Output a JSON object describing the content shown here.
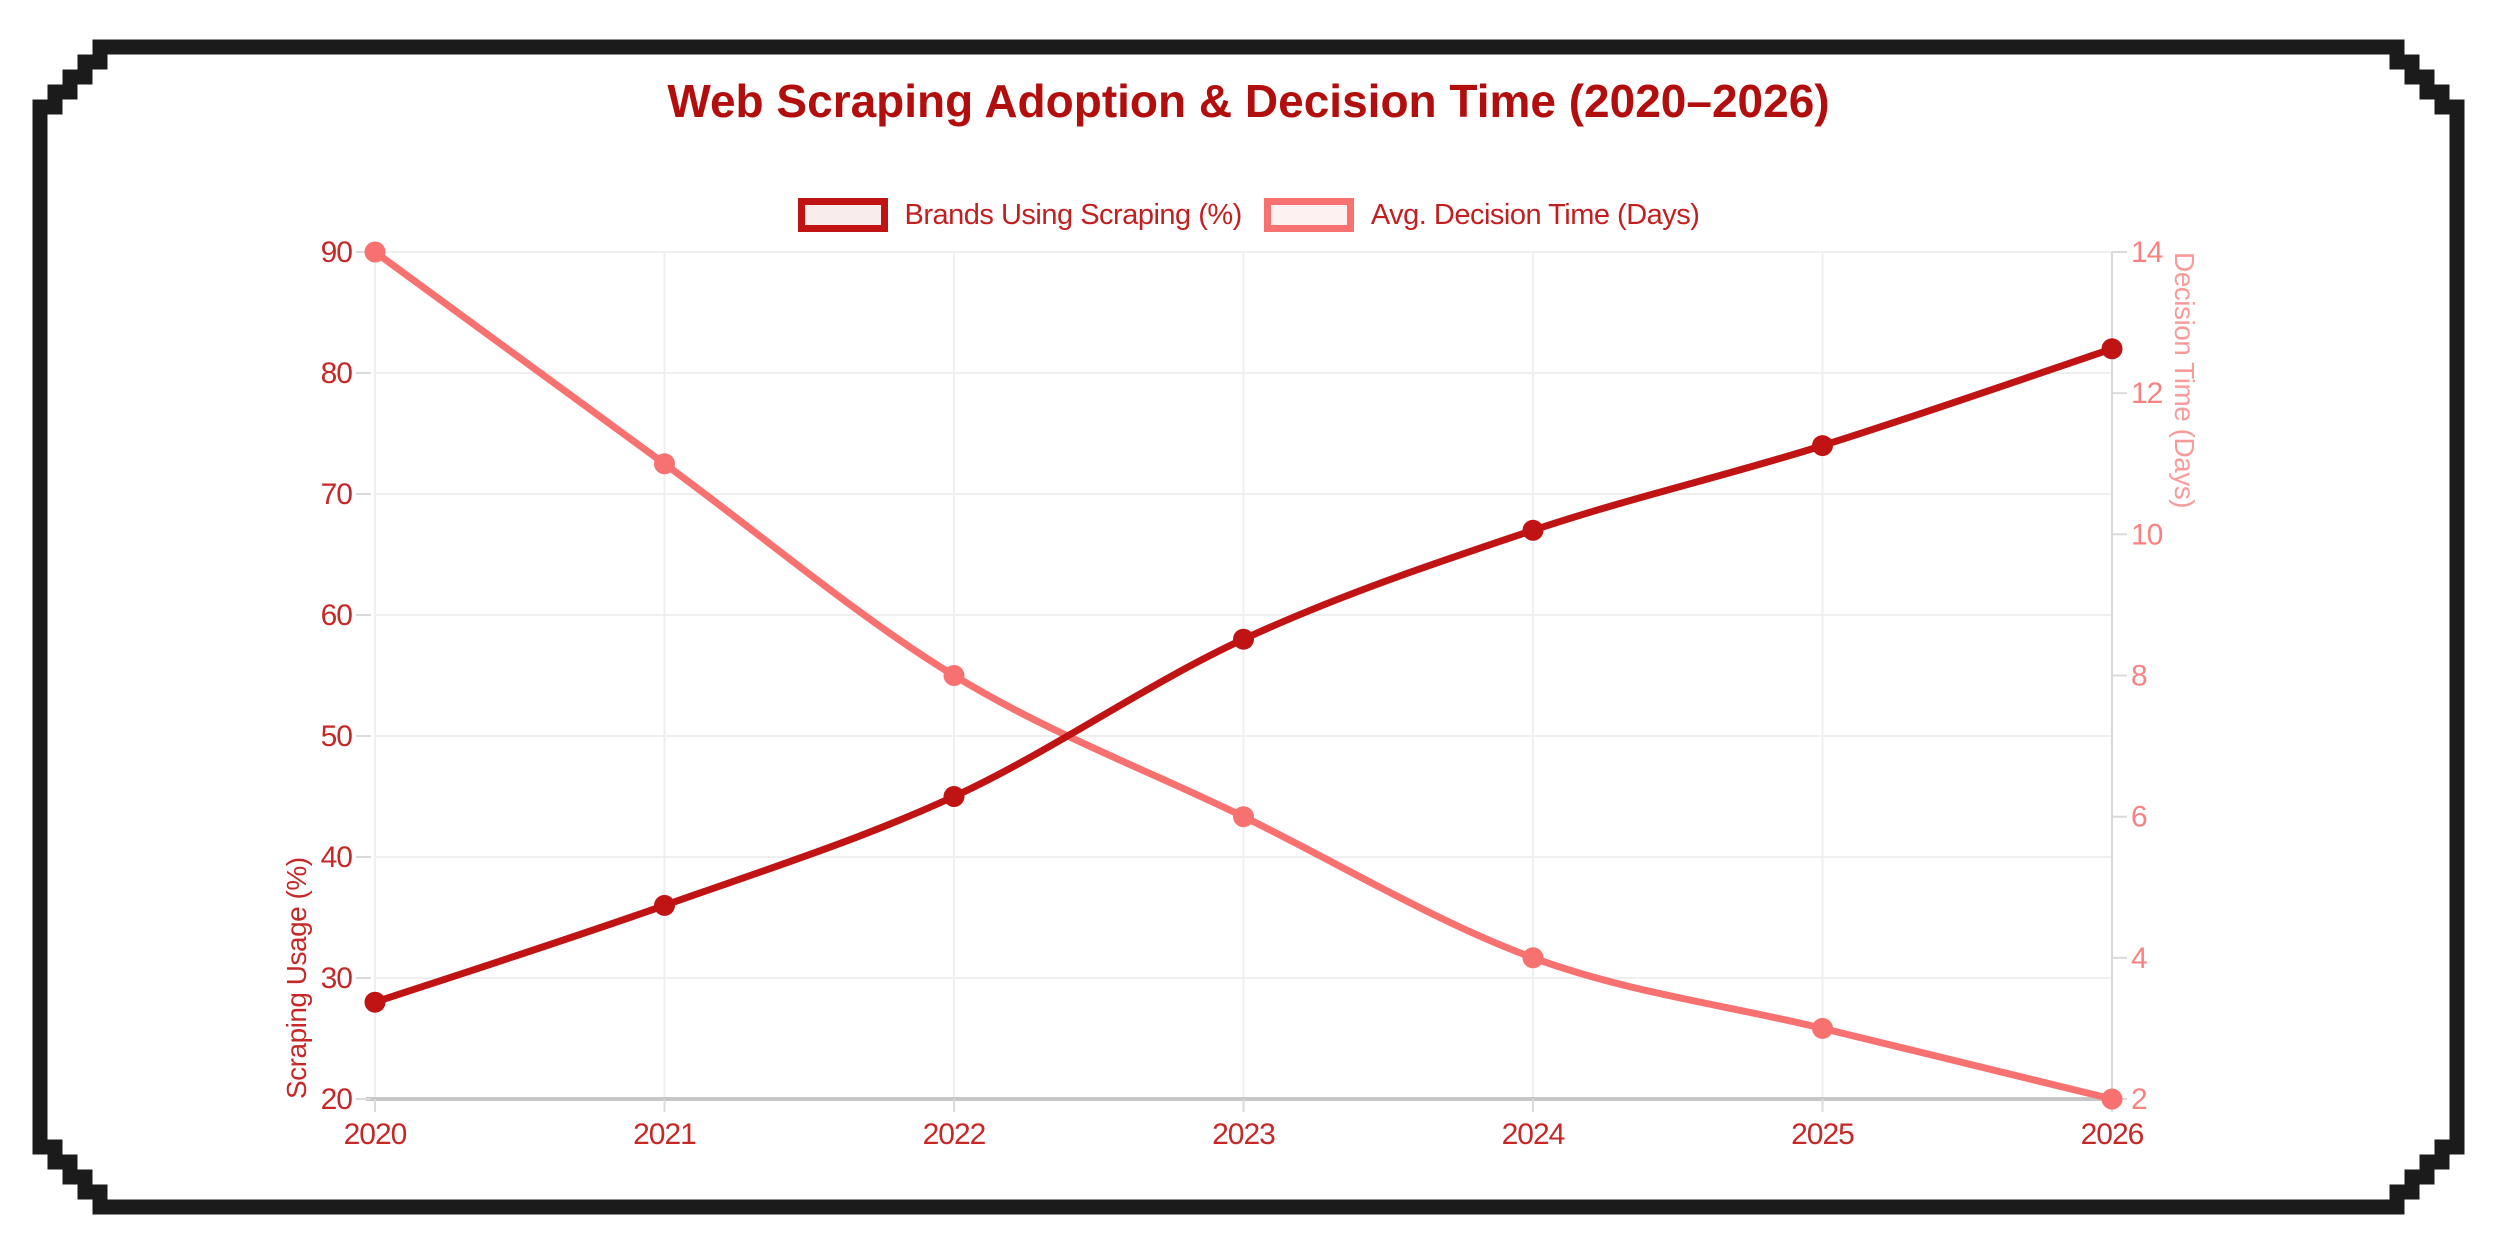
{
  "title": "Web Scraping Adoption & Decision Time (2020–2026)",
  "legend": [
    {
      "label": "Brands Using Scraping (%)"
    },
    {
      "label": "Avg. Decision Time (Days)"
    }
  ],
  "colors": {
    "title": "#b30e0e",
    "series1": "#c01414",
    "series1_fill": "#f9ecec",
    "series2": "#f87171",
    "series2_fill": "#fdf1f1",
    "legend_text": "#c22020",
    "left_text": "#c62828",
    "right_text": "#f88282",
    "axis_title_left": "#c62828",
    "axis_title_right": "#f79b9b",
    "grid": "#efefef",
    "axis_line": "#c6c6c6",
    "tick": "#dadada",
    "frame": "#1b1b1b",
    "background": "#ffffff"
  },
  "chart_data": {
    "type": "line",
    "title": "Web Scraping Adoption & Decision Time (2020–2026)",
    "x": [
      2020,
      2021,
      2022,
      2023,
      2024,
      2025,
      2026
    ],
    "series": [
      {
        "name": "Brands Using Scraping (%)",
        "axis": "left",
        "values": [
          28,
          36,
          45,
          58,
          67,
          74,
          82
        ]
      },
      {
        "name": "Avg. Decision Time (Days)",
        "axis": "right",
        "values": [
          14,
          11,
          8,
          6,
          4,
          3,
          2
        ]
      }
    ],
    "left_axis": {
      "label": "Scraping Usage (%)",
      "min": 20,
      "max": 90,
      "ticks": [
        90,
        80,
        70,
        60,
        50,
        40,
        30,
        20
      ]
    },
    "right_axis": {
      "label": "Decision Time (Days)",
      "min": 2,
      "max": 14,
      "ticks": [
        14,
        12,
        10,
        8,
        6,
        4,
        2
      ]
    },
    "grid": true,
    "legend_position": "top",
    "smooth": true
  }
}
